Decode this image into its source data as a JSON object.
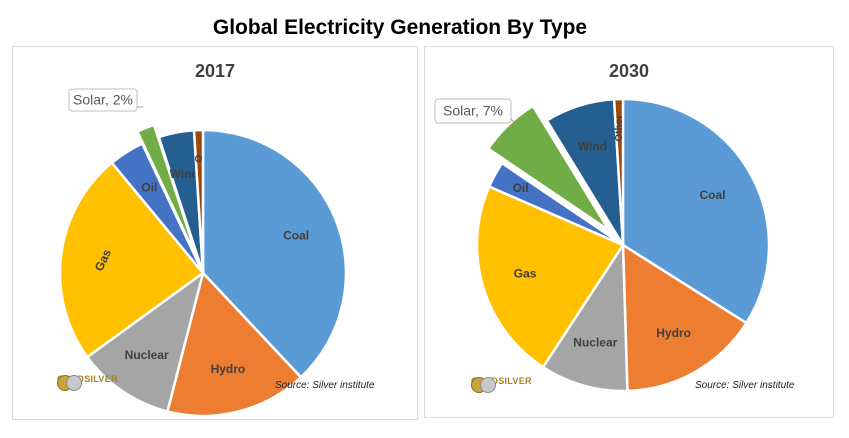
{
  "title": "Global Electricity Generation By Type",
  "logo_text": "GOLDSILVER",
  "source": "Source: Silver institute",
  "colors": {
    "Coal": "#5b9bd5",
    "Hydro": "#ed7d31",
    "Nuclear": "#a5a5a5",
    "Gas": "#ffc000",
    "Oil": "#4472c4",
    "Solar": "#70ad47",
    "Wind": "#255e91",
    "Other": "#9e480e"
  },
  "chart_data": [
    {
      "type": "pie",
      "title": "2017",
      "categories": [
        "Coal",
        "Hydro",
        "Nuclear",
        "Gas",
        "Oil",
        "Solar",
        "Wind",
        "Other"
      ],
      "slice_labels": [
        "Coal",
        "Hydro",
        "Nuclear",
        "Gas",
        "Oil",
        "",
        "Wind",
        "O"
      ],
      "values": [
        38,
        16,
        11,
        24,
        4,
        2,
        4,
        1
      ],
      "callout": "Solar, 2%",
      "exploded": "Solar"
    },
    {
      "type": "pie",
      "title": "2030",
      "categories": [
        "Coal",
        "Hydro",
        "Nuclear",
        "Gas",
        "Oil",
        "Solar",
        "Wind",
        "Other"
      ],
      "slice_labels": [
        "Coal",
        "Hydro",
        "Nuclear",
        "Gas",
        "Oil",
        "",
        "Wind",
        "Other"
      ],
      "values": [
        35,
        16,
        10,
        23,
        3,
        7,
        8,
        1
      ],
      "callout": "Solar, 7%",
      "exploded": "Solar"
    }
  ]
}
